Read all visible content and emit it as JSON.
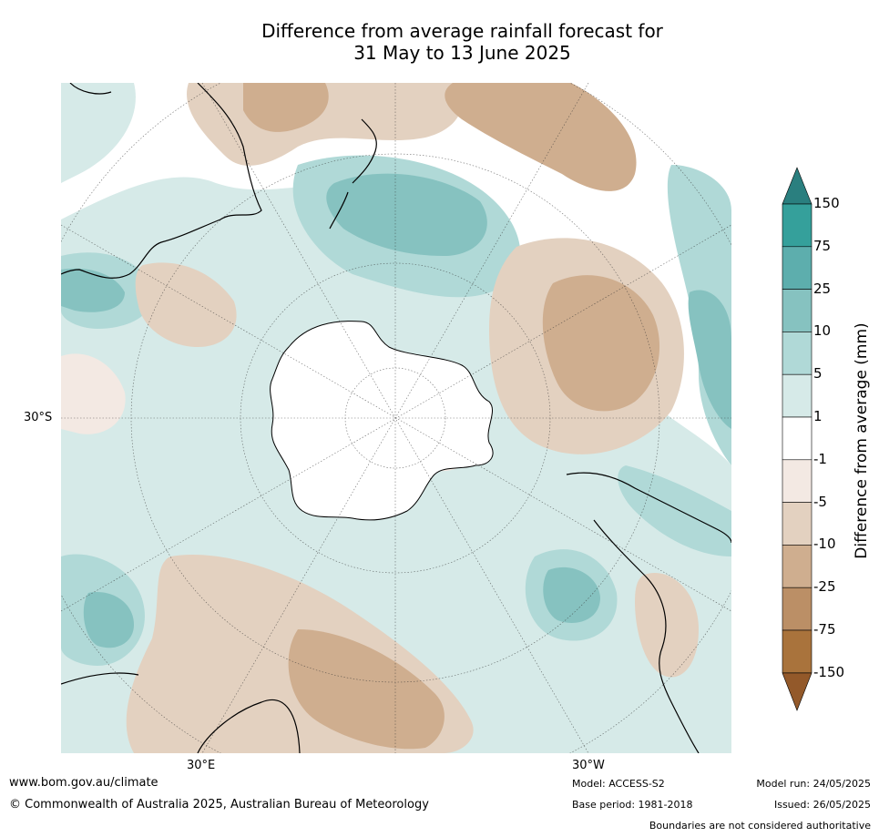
{
  "title_line1": "Difference from average rainfall forecast for",
  "title_line2": "31 May to 13 June 2025",
  "map_labels": {
    "lat_30s": "30°S",
    "lon_30e": "30°E",
    "lon_30w": "30°W"
  },
  "colorbar": {
    "label": "Difference from average (mm)",
    "ticks": [
      "150",
      "75",
      "25",
      "10",
      "5",
      "1",
      "-1",
      "-5",
      "-10",
      "-25",
      "-75",
      "-150"
    ],
    "colors": [
      "#2a7f7f",
      "#35a09b",
      "#5daead",
      "#86c2c0",
      "#b0d9d7",
      "#d6eae8",
      "#ffffff",
      "#f3e9e3",
      "#e3d1c0",
      "#cfae8f",
      "#bb8f66",
      "#a9733c",
      "#93592a"
    ]
  },
  "footer": {
    "url": "www.bom.gov.au/climate",
    "copyright": "© Commonwealth of Australia 2025, Australian Bureau of Meteorology",
    "model": "Model: ACCESS-S2",
    "base_period": "Base period: 1981-2018",
    "model_run": "Model run: 24/05/2025",
    "issued": "Issued: 26/05/2025",
    "disclaimer": "Boundaries are not considered authoritative"
  }
}
